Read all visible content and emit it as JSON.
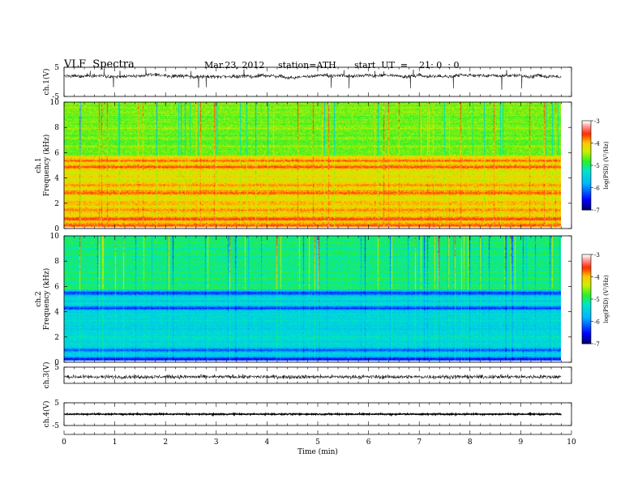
{
  "header": {
    "title": "VLF  Spectra",
    "date": "Mar.23, 2012",
    "station": "station=ATH",
    "start": "start  UT  =    21: 0  : 0"
  },
  "chart_data": [
    {
      "type": "line",
      "panel": "ch1-waveform",
      "ylabel": "ch.1(V)",
      "ylim": [
        -5,
        5
      ],
      "y_ticks": [
        "5",
        "-5"
      ],
      "description_level": 2
    },
    {
      "type": "heatmap",
      "panel": "ch1-spectrogram",
      "ylabel_top": "ch.1",
      "ylabel": "Frequency  (kHz)",
      "ylim": [
        0,
        10
      ],
      "y_ticks": [
        "0",
        "2",
        "4",
        "6",
        "8",
        "10"
      ],
      "colorbar": {
        "label": "log(PSD) (V²/Hz)",
        "range": [
          -7,
          -3
        ],
        "ticks": [
          "-3",
          "-4",
          "-5",
          "-6",
          "-7"
        ]
      },
      "background_level": -4.2,
      "bands": [
        {
          "f": 0.3,
          "level": -3.5
        },
        {
          "f": 0.8,
          "level": -3.4
        },
        {
          "f": 1.5,
          "level": -3.8
        },
        {
          "f": 2.0,
          "level": -3.9
        },
        {
          "f": 2.9,
          "level": -3.7
        },
        {
          "f": 3.5,
          "level": -3.8
        },
        {
          "f": 4.9,
          "level": -3.6
        },
        {
          "f": 5.4,
          "level": -3.7
        }
      ],
      "upper_region_level": -4.6
    },
    {
      "type": "heatmap",
      "panel": "ch2-spectrogram",
      "ylabel_top": "ch.2",
      "ylabel": "Frequency  (kHz)",
      "ylim": [
        0,
        10
      ],
      "y_ticks": [
        "0",
        "2",
        "4",
        "6",
        "8",
        "10"
      ],
      "colorbar": {
        "label": "log(PSD) (V²/Hz)",
        "range": [
          -7,
          -3
        ],
        "ticks": [
          "-3",
          "-4",
          "-5",
          "-6",
          "-7"
        ]
      },
      "background_level": -5.4,
      "bands": [
        {
          "f": 0.3,
          "level": -6.5
        },
        {
          "f": 1.0,
          "level": -6.2
        },
        {
          "f": 1.9,
          "level": -5.2
        },
        {
          "f": 4.3,
          "level": -6.3
        },
        {
          "f": 5.5,
          "level": -6.4
        }
      ],
      "upper_region_level": -5.0
    },
    {
      "type": "line",
      "panel": "ch3-waveform",
      "ylabel": "ch.3(V)",
      "ylim": [
        -5,
        5
      ],
      "y_ticks": [
        "5"
      ],
      "description_level": -1
    },
    {
      "type": "line",
      "panel": "ch4-waveform",
      "ylabel": "ch.4(V)",
      "ylim": [
        -5,
        5
      ],
      "y_ticks": [
        "5",
        "-5"
      ],
      "description_level": 0
    }
  ],
  "xaxis": {
    "label": "Time  (min)",
    "xlim": [
      0,
      10
    ],
    "ticks": [
      "0",
      "1",
      "2",
      "3",
      "4",
      "5",
      "6",
      "7",
      "8",
      "9",
      "10"
    ],
    "data_end": 9.8
  },
  "colors": {
    "low": "#000080",
    "mid": "#00ff00",
    "high": "#ff0000",
    "top": "#ffffff"
  }
}
